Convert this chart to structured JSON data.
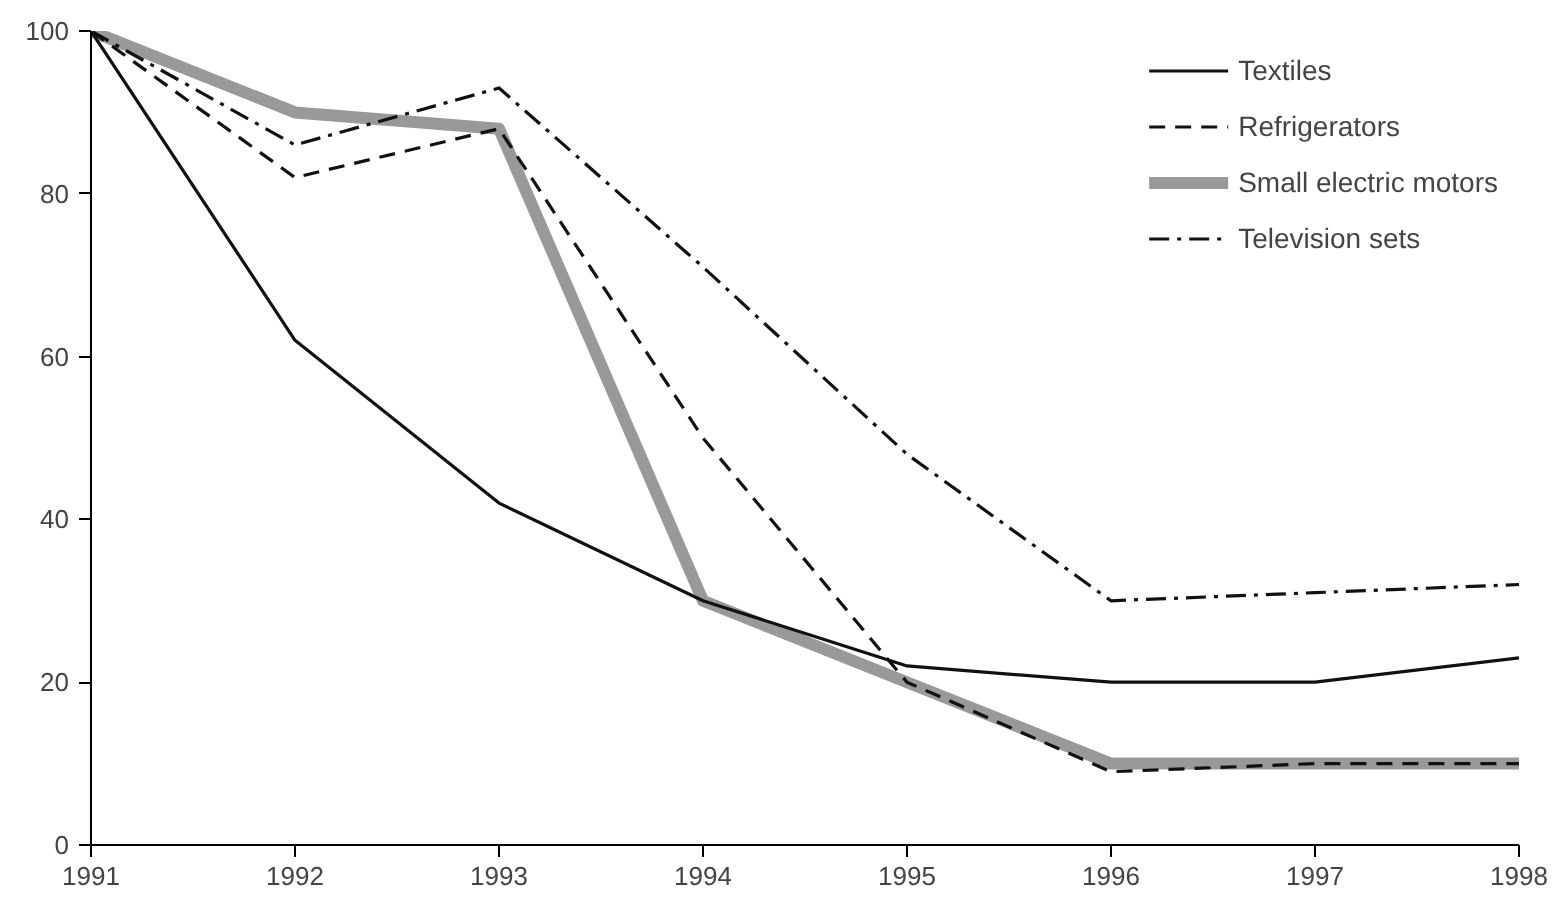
{
  "chart_data": {
    "type": "line",
    "x": [
      1991,
      1992,
      1993,
      1994,
      1995,
      1996,
      1997,
      1998
    ],
    "series": [
      {
        "name": "Textiles",
        "color": "#111111",
        "line_style": "solid",
        "values": [
          100,
          62,
          42,
          30,
          22,
          20,
          20,
          23
        ]
      },
      {
        "name": "Refrigerators",
        "color": "#111111",
        "line_style": "dashed",
        "values": [
          100,
          82,
          88,
          50,
          20,
          9,
          10,
          10
        ]
      },
      {
        "name": "Small electric motors",
        "color": "#999999",
        "line_style": "solid",
        "values": [
          100,
          90,
          88,
          30,
          20,
          10,
          10,
          10
        ]
      },
      {
        "name": "Television sets",
        "color": "#111111",
        "line_style": "dashdot",
        "values": [
          100,
          86,
          93,
          71,
          48,
          30,
          31,
          32
        ]
      }
    ],
    "xlim": [
      1991,
      1998
    ],
    "xticks": [
      1991,
      1992,
      1993,
      1994,
      1995,
      1996,
      1997,
      1998
    ],
    "ylim": [
      0,
      100
    ],
    "yticks": [
      0,
      20,
      40,
      60,
      80,
      100
    ],
    "grid": false,
    "legend": "top right",
    "marker": "none"
  }
}
